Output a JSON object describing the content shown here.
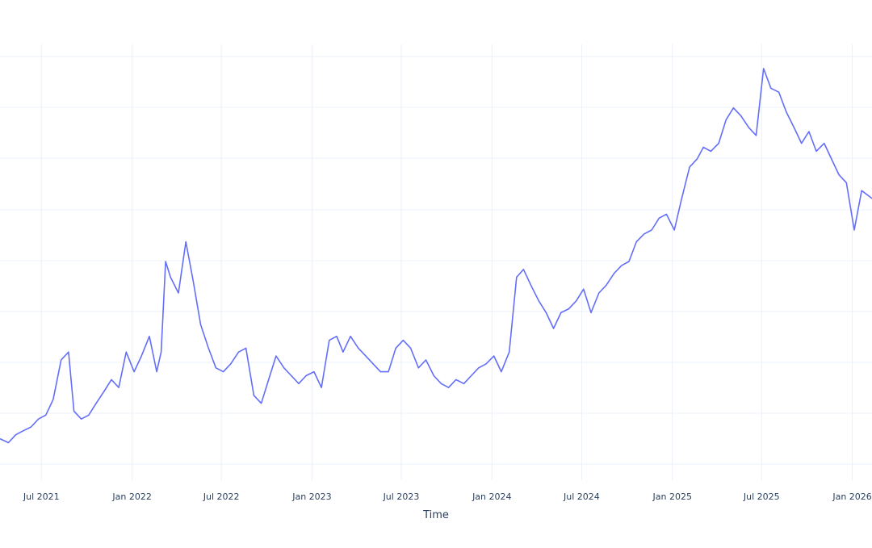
{
  "chart_data": {
    "type": "line",
    "xlabel": "Time",
    "ylabel": "",
    "grid": true,
    "x_tick_labels": [
      "Jul 2021",
      "Jan 2022",
      "Jul 2022",
      "Jan 2023",
      "Jul 2023",
      "Jan 2024",
      "Jul 2024",
      "Jan 2025",
      "Jul 2025",
      "Jan 2026"
    ],
    "x_ticks": [
      "2021-07-01",
      "2022-01-01",
      "2022-07-01",
      "2023-01-01",
      "2023-07-01",
      "2024-01-01",
      "2024-07-01",
      "2025-01-01",
      "2025-07-01",
      "2026-01-01"
    ],
    "xlim": [
      "2021-04-08",
      "2026-02-10"
    ],
    "ylim": [
      0,
      100
    ],
    "series": [
      {
        "color": "#636efa",
        "x": [
          "2021-04-08",
          "2021-04-25",
          "2021-05-10",
          "2021-05-25",
          "2021-06-10",
          "2021-06-25",
          "2021-07-10",
          "2021-07-25",
          "2021-08-10",
          "2021-08-25",
          "2021-09-05",
          "2021-09-20",
          "2021-10-05",
          "2021-10-20",
          "2021-11-05",
          "2021-11-20",
          "2021-12-05",
          "2021-12-20",
          "2022-01-05",
          "2022-01-20",
          "2022-02-05",
          "2022-02-20",
          "2022-03-01",
          "2022-03-10",
          "2022-03-20",
          "2022-04-05",
          "2022-04-20",
          "2022-05-05",
          "2022-05-20",
          "2022-06-05",
          "2022-06-20",
          "2022-07-05",
          "2022-07-20",
          "2022-08-05",
          "2022-08-20",
          "2022-09-05",
          "2022-09-20",
          "2022-10-05",
          "2022-10-20",
          "2022-11-05",
          "2022-11-20",
          "2022-12-05",
          "2022-12-20",
          "2023-01-05",
          "2023-01-20",
          "2023-02-05",
          "2023-02-20",
          "2023-03-05",
          "2023-03-20",
          "2023-04-05",
          "2023-04-20",
          "2023-05-05",
          "2023-05-20",
          "2023-06-05",
          "2023-06-20",
          "2023-07-05",
          "2023-07-20",
          "2023-08-05",
          "2023-08-20",
          "2023-09-05",
          "2023-09-20",
          "2023-10-05",
          "2023-10-20",
          "2023-11-05",
          "2023-11-20",
          "2023-12-05",
          "2023-12-20",
          "2024-01-05",
          "2024-01-20",
          "2024-02-05",
          "2024-02-20",
          "2024-03-05",
          "2024-03-20",
          "2024-04-05",
          "2024-04-20",
          "2024-05-05",
          "2024-05-20",
          "2024-06-05",
          "2024-06-20",
          "2024-07-05",
          "2024-07-20",
          "2024-08-05",
          "2024-08-20",
          "2024-09-05",
          "2024-09-20",
          "2024-10-05",
          "2024-10-20",
          "2024-11-05",
          "2024-11-20",
          "2024-12-05",
          "2024-12-20",
          "2025-01-05",
          "2025-01-20",
          "2025-02-05",
          "2025-02-20",
          "2025-03-05",
          "2025-03-20",
          "2025-04-05",
          "2025-04-20",
          "2025-05-05",
          "2025-05-20",
          "2025-06-05",
          "2025-06-20",
          "2025-07-05",
          "2025-07-20",
          "2025-08-05",
          "2025-08-20",
          "2025-09-05",
          "2025-09-20",
          "2025-10-05",
          "2025-10-20",
          "2025-11-05",
          "2025-11-20",
          "2025-12-05",
          "2025-12-20",
          "2026-01-05",
          "2026-01-20",
          "2026-02-10"
        ],
        "y": [
          5,
          4,
          6,
          7,
          8,
          10,
          11,
          15,
          25,
          27,
          12,
          10,
          11,
          14,
          17,
          20,
          18,
          27,
          22,
          26,
          31,
          22,
          27,
          50,
          46,
          42,
          55,
          45,
          34,
          28,
          23,
          22,
          24,
          27,
          28,
          16,
          14,
          20,
          26,
          23,
          21,
          19,
          21,
          22,
          18,
          30,
          31,
          27,
          31,
          28,
          26,
          24,
          22,
          22,
          28,
          30,
          28,
          23,
          25,
          21,
          19,
          18,
          20,
          19,
          21,
          23,
          24,
          26,
          22,
          27,
          46,
          48,
          44,
          40,
          37,
          33,
          37,
          38,
          40,
          43,
          37,
          42,
          44,
          47,
          49,
          50,
          55,
          57,
          58,
          61,
          62,
          58,
          66,
          74,
          76,
          79,
          78,
          80,
          86,
          89,
          87,
          84,
          82,
          99,
          94,
          93,
          88,
          84,
          80,
          83,
          78,
          80,
          76,
          72,
          70,
          58,
          68,
          66
        ]
      }
    ]
  }
}
